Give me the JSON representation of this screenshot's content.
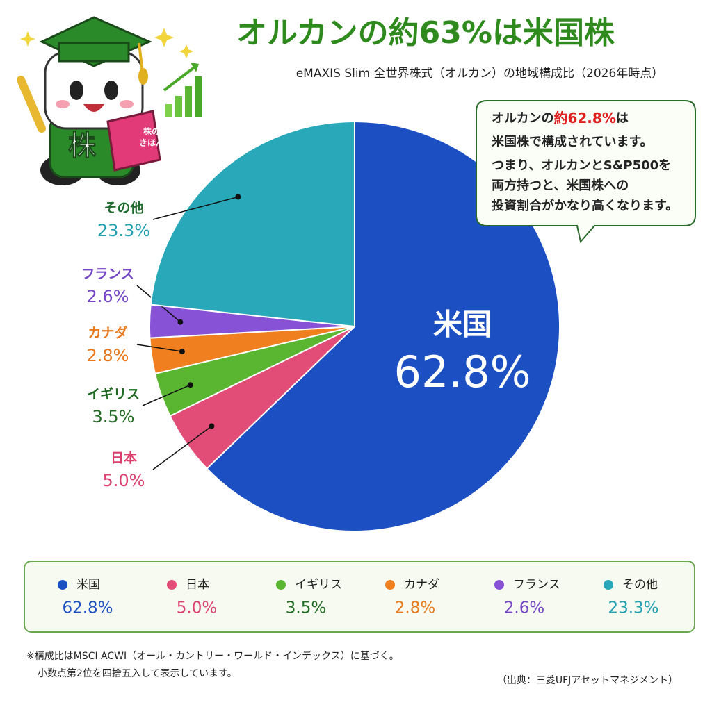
{
  "chart_data": {
    "type": "pie",
    "title": "オルカンの約63%は米国株",
    "subtitle": "eMAXIS Slim 全世界株式（オルカン）の地域構成比（2026年時点）",
    "categories": [
      "米国",
      "日本",
      "イギリス",
      "カナダ",
      "フランス",
      "その他"
    ],
    "values": [
      62.8,
      5.0,
      3.5,
      2.8,
      2.6,
      23.3
    ],
    "value_labels": [
      "62.8%",
      "5.0%",
      "3.5%",
      "2.8%",
      "2.6%",
      "23.3%"
    ],
    "colors": [
      "#1b4fc2",
      "#e24d78",
      "#5ab531",
      "#ef7f1f",
      "#8752d6",
      "#28a8b8"
    ],
    "label_colors": [
      "#1b4fc2",
      "#dc3f6e",
      "#1f6a22",
      "#e8781b",
      "#7446c6",
      "#1f9fb0"
    ],
    "legend": "bottom"
  },
  "callout": {
    "first_line": [
      "オルカンの",
      "約62.8%",
      "は"
    ],
    "lines": [
      "米国株で構成されています。",
      "つまり、オルカンとS&P500を",
      "両方持つと、米国株への",
      "投資割合がかなり高くなります。"
    ]
  },
  "mascot": {
    "badge": "株",
    "book": [
      "株の",
      "きほん"
    ]
  },
  "notes": [
    "※構成比はMSCI ACWI（オール・カントリー・ワールド・インデックス）に基づく。",
    "小数点第2位を四捨五入して表示しています。"
  ],
  "source": "（出典：三菱UFJアセットマネジメント）"
}
